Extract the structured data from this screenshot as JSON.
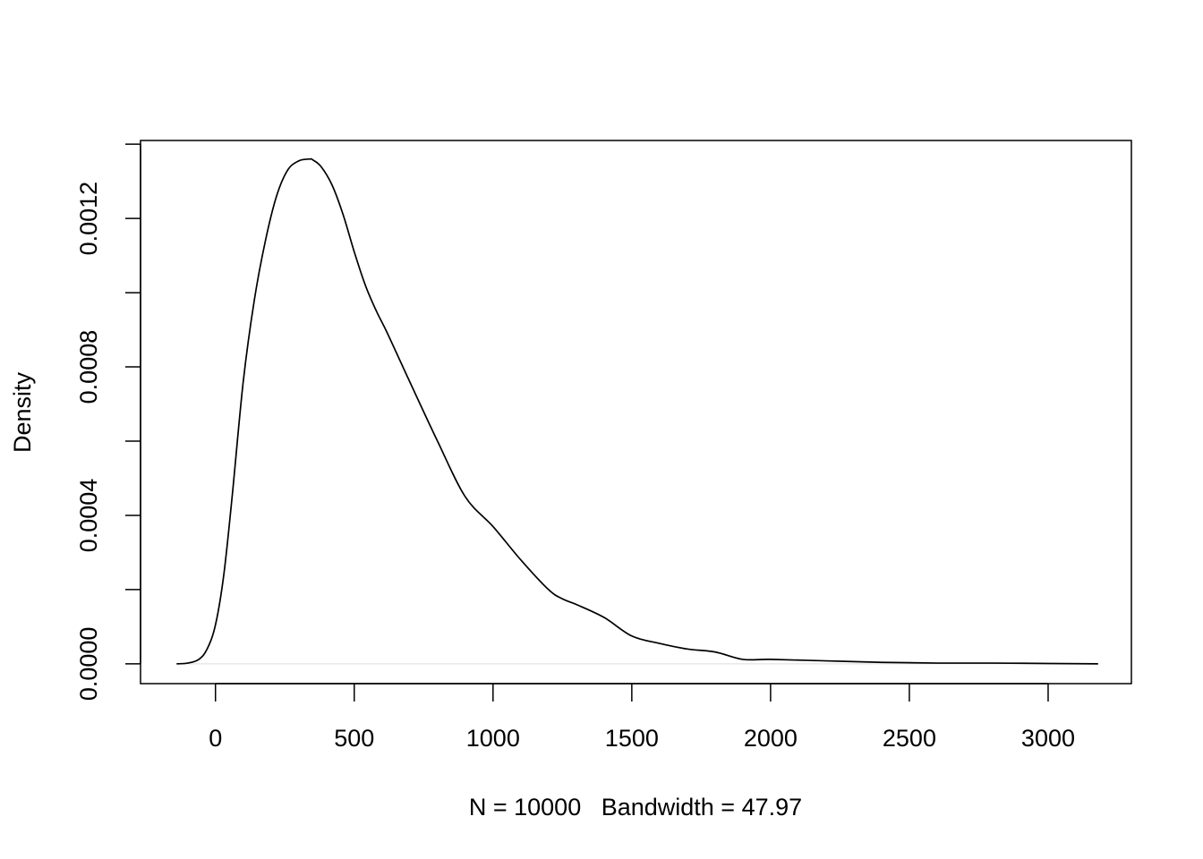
{
  "chart_data": {
    "type": "line",
    "title": "",
    "xlabel": "N = 10000   Bandwidth = 47.97",
    "ylabel": "Density",
    "xlim": [
      -270,
      3300
    ],
    "ylim": [
      -5.33e-05,
      0.00141
    ],
    "x_ticks": [
      0,
      500,
      1000,
      1500,
      2000,
      2500,
      3000
    ],
    "x_tick_labels": [
      "0",
      "500",
      "1000",
      "1500",
      "2000",
      "2500",
      "3000"
    ],
    "y_ticks": [
      0,
      0.0002,
      0.0004,
      0.0006,
      0.0008,
      0.001,
      0.0012,
      0.0014
    ],
    "y_tick_labels": [
      "0.0000",
      "",
      "0.0004",
      "",
      "0.0008",
      "",
      "0.0012",
      ""
    ],
    "grid": false,
    "series": [
      {
        "color": "#000000",
        "x": [
          -140,
          -100,
          -60,
          -30,
          0,
          30,
          60,
          100,
          140,
          180,
          220,
          260,
          300,
          340,
          350,
          380,
          420,
          460,
          500,
          540,
          580,
          620,
          700,
          800,
          900,
          1000,
          1100,
          1200,
          1250,
          1300,
          1400,
          1500,
          1600,
          1700,
          1800,
          1900,
          2000,
          2200,
          2400,
          2600,
          2800,
          3000,
          3180
        ],
        "values": [
          0.0,
          2e-06,
          1.2e-05,
          4e-05,
          0.000105,
          0.00024,
          0.00045,
          0.00076,
          0.00098,
          0.00114,
          0.00126,
          0.00133,
          0.001355,
          0.00136,
          0.001358,
          0.00134,
          0.00129,
          0.00121,
          0.00111,
          0.00102,
          0.00095,
          0.00089,
          0.00076,
          0.0006,
          0.00045,
          0.00037,
          0.00028,
          0.0002,
          0.000175,
          0.00016,
          0.000125,
          7.5e-05,
          5.5e-05,
          4e-05,
          3.2e-05,
          1.2e-05,
          1.2e-05,
          8e-06,
          4e-06,
          2e-06,
          2e-06,
          1e-06,
          0.0
        ]
      }
    ]
  }
}
